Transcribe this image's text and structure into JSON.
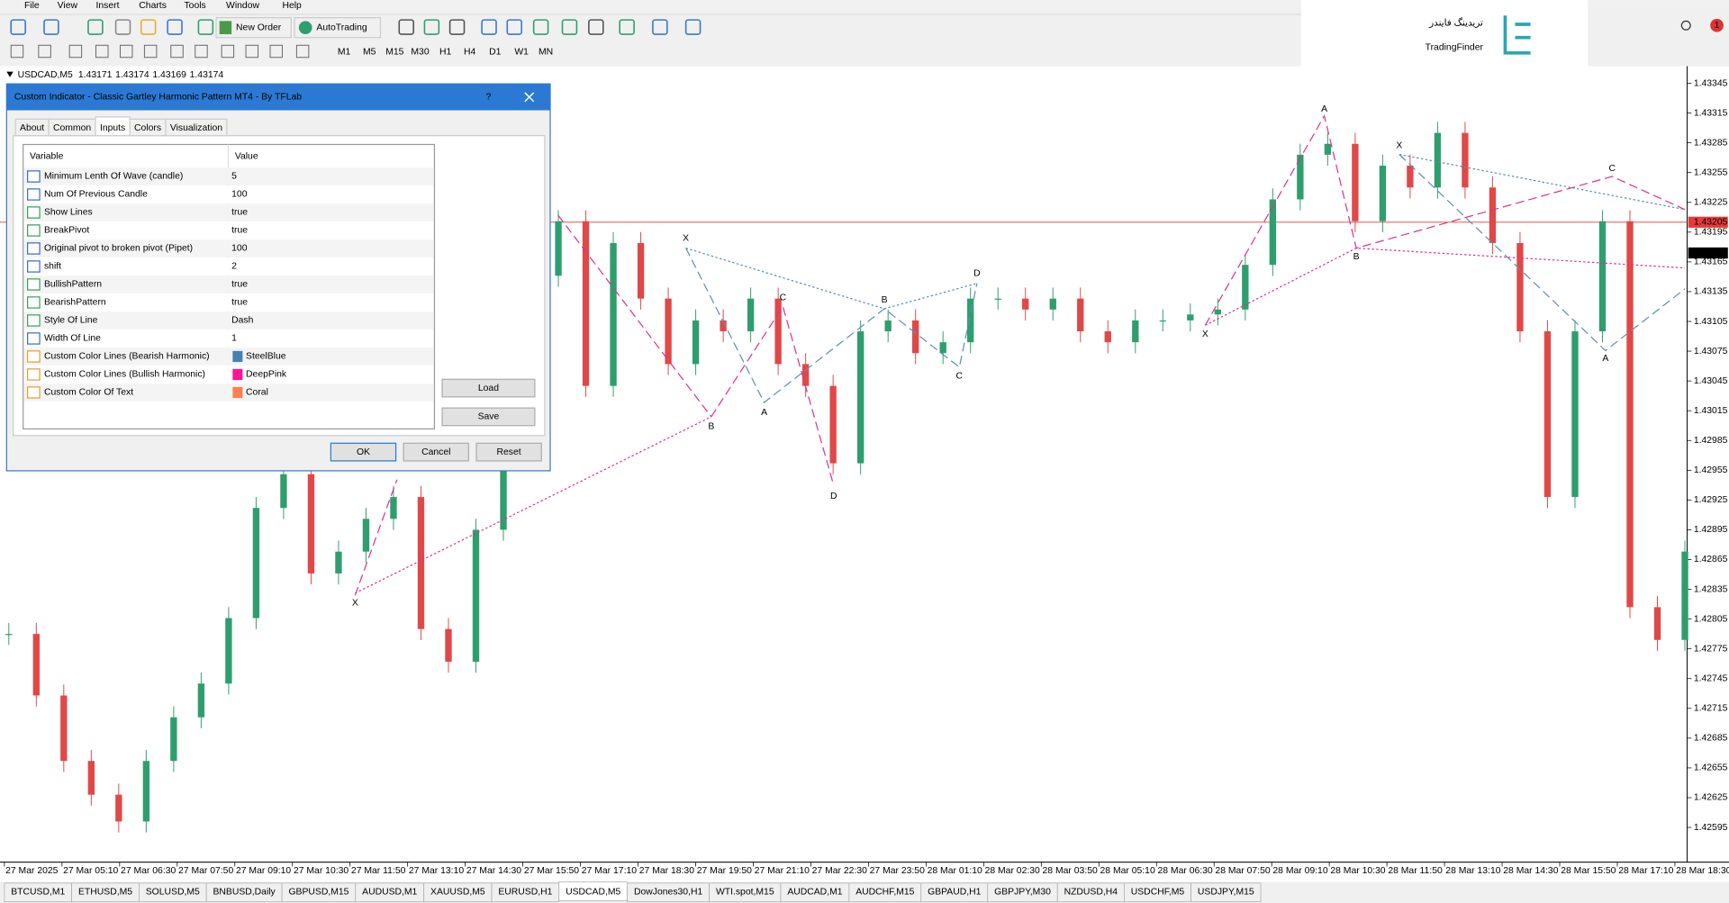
{
  "menu": [
    "File",
    "View",
    "Insert",
    "Charts",
    "Tools",
    "Window",
    "Help"
  ],
  "toolbar": {
    "new_order": "New Order",
    "auto_trading": "AutoTrading",
    "timeframes": [
      "M1",
      "M5",
      "M15",
      "M30",
      "H1",
      "H4",
      "D1",
      "W1",
      "MN"
    ]
  },
  "logo": {
    "persian": "تریدینگ فایندر",
    "latin": "TradingFinder"
  },
  "notifications": 1,
  "chart_data": {
    "type": "candlestick",
    "symbol": "USDCAD,M5",
    "ohlc": [
      1.43171,
      1.43174,
      1.43169,
      1.43174
    ],
    "closes": [
      1.4279,
      1.42728,
      1.42662,
      1.42628,
      1.42601,
      1.42662,
      1.42706,
      1.4274,
      1.42806,
      1.42917,
      1.42951,
      1.42851,
      1.42873,
      1.42906,
      1.42928,
      1.42795,
      1.42762,
      1.42895,
      1.4304,
      1.43151,
      1.43206,
      1.4304,
      1.43184,
      1.43128,
      1.43062,
      1.43106,
      1.43095,
      1.43128,
      1.43062,
      1.4304,
      1.42962,
      1.43095,
      1.43106,
      1.43073,
      1.43084,
      1.43128,
      1.43128,
      1.43117,
      1.43128,
      1.43095,
      1.43084,
      1.43106,
      1.43106,
      1.43112,
      1.43117,
      1.43162,
      1.43228,
      1.43273,
      1.43284,
      1.43206,
      1.43262,
      1.4324,
      1.43295,
      1.4324,
      1.43184,
      1.43095,
      1.42928,
      1.43095,
      1.43206,
      1.42817,
      1.42784,
      1.42873
    ],
    "ylim": [
      1.4256,
      1.4336
    ],
    "yticks": [
      1.43345,
      1.43315,
      1.43285,
      1.43255,
      1.43225,
      1.43195,
      1.43165,
      1.43135,
      1.43105,
      1.43075,
      1.43045,
      1.43015,
      1.42985,
      1.42955,
      1.42925,
      1.42895,
      1.42865,
      1.42835,
      1.42805,
      1.42775,
      1.42745,
      1.42715,
      1.42685,
      1.42655,
      1.42625,
      1.42595
    ],
    "price_line": 1.43205,
    "bid": 1.43174,
    "x_labels": [
      "27 Mar 2025",
      "27 Mar 05:10",
      "27 Mar 06:30",
      "27 Mar 07:50",
      "27 Mar 09:10",
      "27 Mar 10:30",
      "27 Mar 11:50",
      "27 Mar 13:10",
      "27 Mar 14:30",
      "27 Mar 15:50",
      "27 Mar 17:10",
      "27 Mar 18:30",
      "27 Mar 19:50",
      "27 Mar 21:10",
      "27 Mar 22:30",
      "27 Mar 23:50",
      "28 Mar 01:10",
      "28 Mar 02:30",
      "28 Mar 03:50",
      "28 Mar 05:10",
      "28 Mar 06:30",
      "28 Mar 07:50",
      "28 Mar 09:10",
      "28 Mar 10:30",
      "28 Mar 11:50",
      "28 Mar 13:10",
      "28 Mar 14:30",
      "28 Mar 15:50",
      "28 Mar 17:10",
      "28 Mar 18:30"
    ],
    "pattern_labels": [
      "X",
      "X",
      "A",
      "B",
      "C",
      "D",
      "B",
      "C",
      "D",
      "X",
      "A",
      "B",
      "X",
      "C",
      "A"
    ],
    "colors": {
      "up": "#2f9e6e",
      "down": "#e04848",
      "price_line": "#e83a3a"
    }
  },
  "dialog": {
    "title": "Custom Indicator - Classic Gartley Harmonic Pattern MT4 - By TFLab",
    "help": "?",
    "tabs": [
      "About",
      "Common",
      "Inputs",
      "Colors",
      "Visualization"
    ],
    "active_tab": 2,
    "header": [
      "Variable",
      "Value"
    ],
    "rows": [
      [
        "Minimum Lenth Of Wave (candle)",
        5
      ],
      [
        "Num Of Previous Candle",
        100
      ],
      [
        "Show Lines",
        "true"
      ],
      [
        "BreakPivot",
        "true"
      ],
      [
        "Original pivot to broken pivot (Pipet)",
        100
      ],
      [
        "shift",
        2
      ],
      [
        "BullishPattern",
        "true"
      ],
      [
        "BearishPattern",
        "true"
      ],
      [
        "Style Of Line",
        "Dash"
      ],
      [
        "Width Of Line",
        1
      ],
      [
        "Custom Color Lines (Bearish Harmonic)",
        "SteelBlue"
      ],
      [
        "Custom Color Lines (Bullish Harmonic)",
        "DeepPink"
      ],
      [
        "Custom Color Of Text",
        "Coral"
      ]
    ],
    "side_buttons": [
      "Load",
      "Save"
    ],
    "buttons": [
      "OK",
      "Cancel",
      "Reset"
    ]
  },
  "tabs": [
    "BTCUSD,M1",
    "ETHUSD,M5",
    "SOLUSD,M5",
    "BNBUSD,Daily",
    "GBPUSD,M15",
    "AUDUSD,M1",
    "XAUUSD,M5",
    "EURUSD,H1",
    "USDCAD,M5",
    "DowJones30,H1",
    "WTI.spot,M15",
    "AUDCAD,M1",
    "AUDCHF,M15",
    "GBPAUD,H1",
    "GBPJPY,M30",
    "NZDUSD,H4",
    "USDCHF,M5",
    "USDJPY,M15"
  ],
  "active_tab": 8
}
